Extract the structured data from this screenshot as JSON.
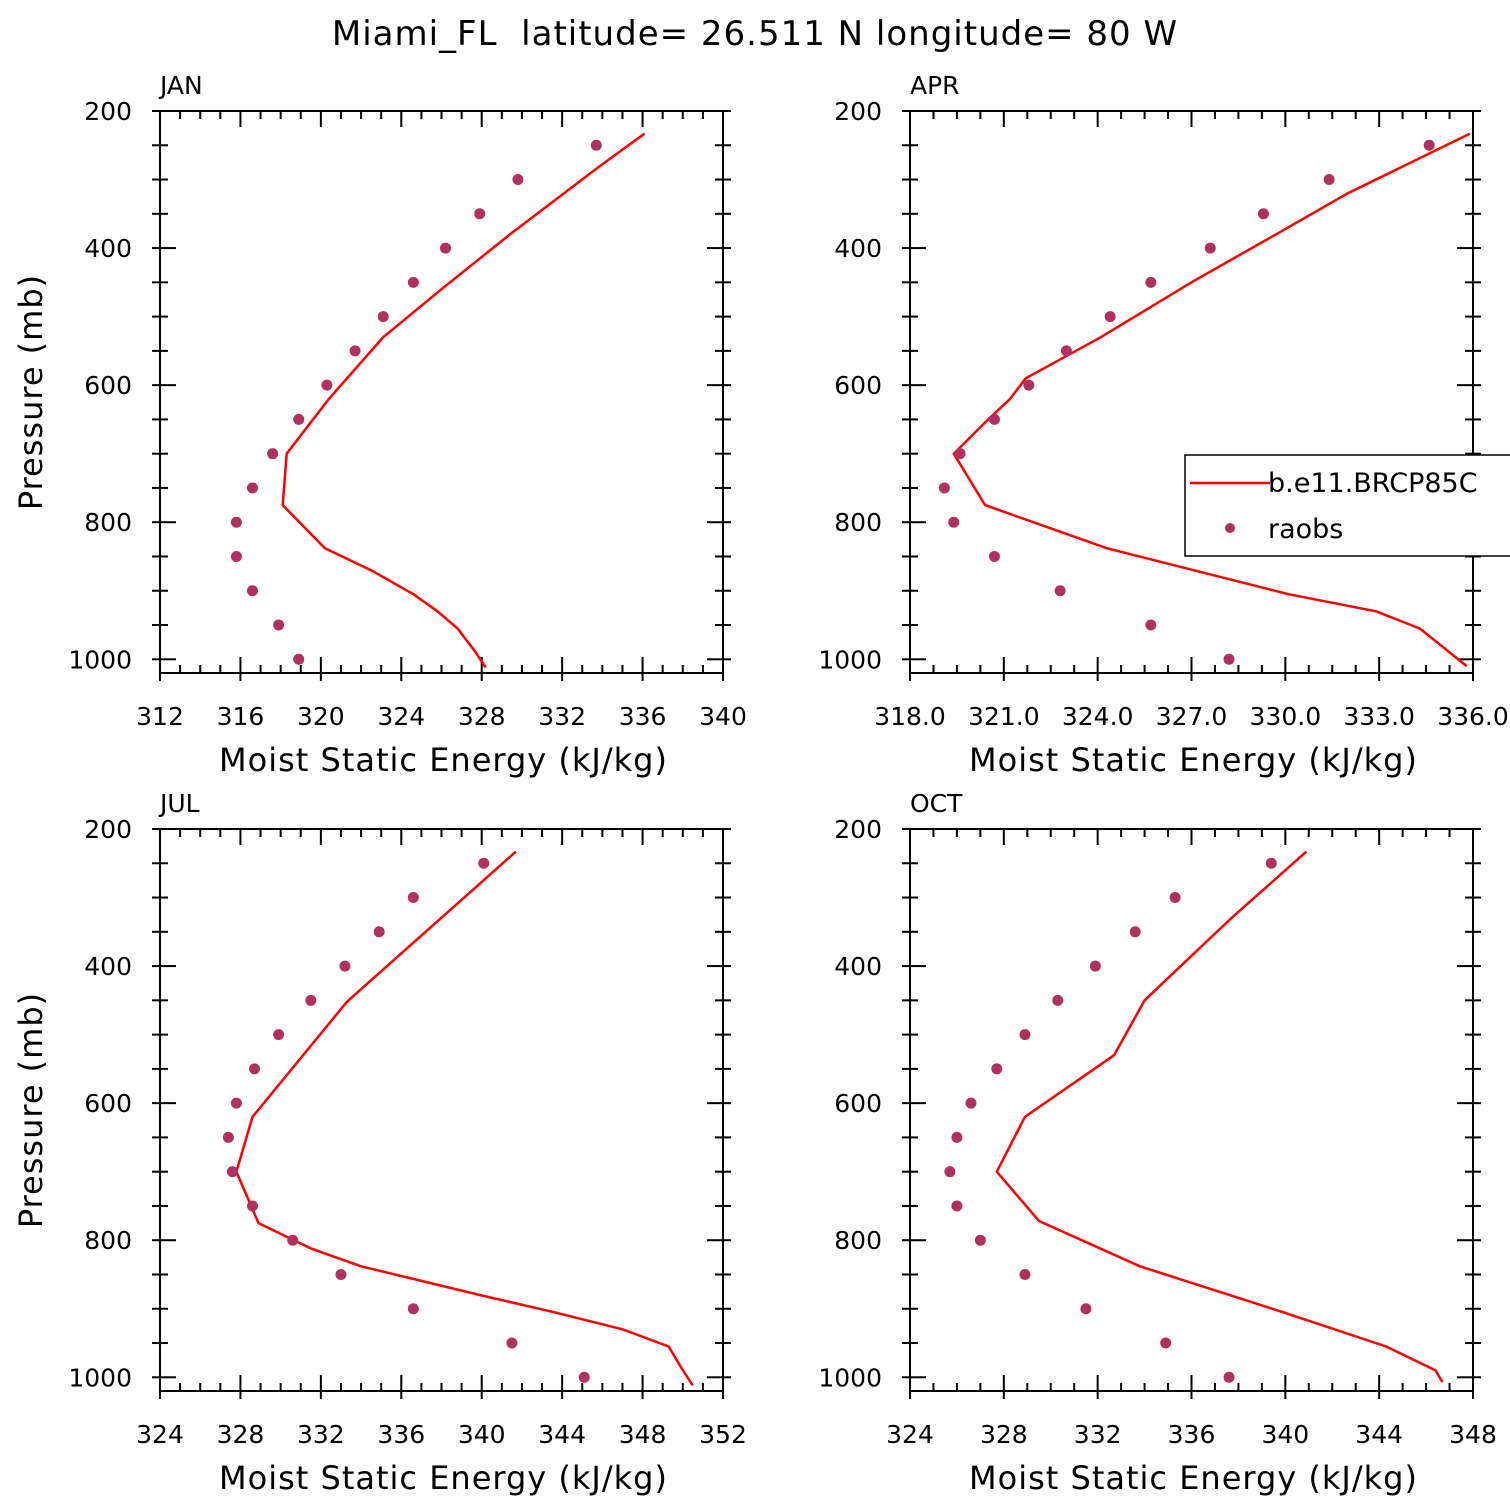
{
  "figure": {
    "title": "Miami_FL  latitude= 26.511 N longitude= 80 W"
  },
  "colors": {
    "model": "#ff0000",
    "raobs": "#b0305f",
    "axes": "#000000"
  },
  "legend": {
    "model_label": "b.e11.BRCP85C",
    "raobs_label": "raobs",
    "placement": "right, APR panel"
  },
  "chart_data": [
    {
      "type": "line",
      "panel_label": "JAN",
      "xlabel": "Moist Static Energy (kJ/kg)",
      "ylabel": "Pressure (mb)",
      "xlim": [
        312,
        340
      ],
      "ylim": [
        1020,
        200
      ],
      "x_ticks": [
        "312",
        "316",
        "320",
        "324",
        "328",
        "332",
        "336",
        "340"
      ],
      "y_ticks": [
        "200",
        "400",
        "600",
        "800",
        "1000"
      ],
      "series": [
        {
          "name": "b.e11.BRCP85C",
          "kind": "line",
          "x": [
            336.1,
            333.9,
            329.4,
            326.0,
            323.1,
            320.4,
            318.3,
            318.1,
            320.2,
            322.5,
            324.6,
            325.8,
            326.8,
            327.7,
            328.2
          ],
          "y": [
            233,
            280,
            380,
            460,
            530,
            620,
            700,
            775,
            838,
            870,
            905,
            930,
            955,
            990,
            1012
          ]
        },
        {
          "name": "raobs",
          "kind": "scatter",
          "x": [
            333.7,
            329.8,
            327.9,
            326.2,
            324.6,
            323.1,
            321.7,
            320.3,
            318.9,
            317.6,
            316.6,
            315.8,
            315.8,
            316.6,
            317.9,
            318.9
          ],
          "y": [
            250,
            300,
            350,
            400,
            450,
            500,
            550,
            600,
            650,
            700,
            750,
            800,
            850,
            900,
            950,
            1000
          ]
        }
      ]
    },
    {
      "type": "line",
      "panel_label": "APR",
      "xlabel": "Moist Static Energy (kJ/kg)",
      "ylabel": "",
      "xlim": [
        318,
        336
      ],
      "ylim": [
        1020,
        200
      ],
      "x_ticks": [
        "318.0",
        "321.0",
        "324.0",
        "327.0",
        "330.0",
        "333.0",
        "336.0"
      ],
      "y_ticks": [
        "200",
        "400",
        "600",
        "800",
        "1000"
      ],
      "series": [
        {
          "name": "b.e11.BRCP85C",
          "kind": "line",
          "x": [
            335.9,
            333.8,
            332.0,
            329.7,
            327.0,
            324.1,
            321.7,
            321.2,
            320.5,
            319.4,
            320.4,
            324.3,
            330.1,
            332.9,
            334.3,
            335.8
          ],
          "y": [
            233,
            280,
            320,
            380,
            450,
            530,
            590,
            620,
            650,
            700,
            775,
            838,
            905,
            930,
            955,
            1010
          ]
        },
        {
          "name": "raobs",
          "kind": "scatter",
          "x": [
            334.6,
            331.4,
            329.3,
            327.6,
            325.7,
            324.4,
            323.0,
            321.8,
            320.7,
            319.6,
            319.1,
            319.4,
            320.7,
            322.8,
            325.7,
            328.2
          ],
          "y": [
            250,
            300,
            350,
            400,
            450,
            500,
            550,
            600,
            650,
            700,
            750,
            800,
            850,
            900,
            950,
            1000
          ]
        }
      ]
    },
    {
      "type": "line",
      "panel_label": "JUL",
      "xlabel": "Moist Static Energy (kJ/kg)",
      "ylabel": "Pressure (mb)",
      "xlim": [
        324,
        352
      ],
      "ylim": [
        1020,
        200
      ],
      "x_ticks": [
        "324",
        "328",
        "332",
        "336",
        "340",
        "344",
        "348",
        "352"
      ],
      "y_ticks": [
        "200",
        "400",
        "600",
        "800",
        "1000"
      ],
      "series": [
        {
          "name": "b.e11.BRCP85C",
          "kind": "line",
          "x": [
            341.7,
            333.3,
            328.6,
            327.8,
            328.9,
            331.5,
            334.0,
            339.9,
            343.6,
            347.0,
            349.3,
            349.9,
            350.5
          ],
          "y": [
            233,
            452,
            620,
            700,
            775,
            812,
            838,
            880,
            905,
            930,
            955,
            985,
            1012
          ]
        },
        {
          "name": "raobs",
          "kind": "scatter",
          "x": [
            340.1,
            336.6,
            334.9,
            333.2,
            331.5,
            329.9,
            328.7,
            327.8,
            327.4,
            327.6,
            328.6,
            330.6,
            333.0,
            336.6,
            341.5,
            345.1
          ],
          "y": [
            250,
            300,
            350,
            400,
            450,
            500,
            550,
            600,
            650,
            700,
            750,
            800,
            850,
            900,
            950,
            1000
          ]
        }
      ]
    },
    {
      "type": "line",
      "panel_label": "OCT",
      "xlabel": "Moist Static Energy (kJ/kg)",
      "ylabel": "",
      "xlim": [
        324,
        348
      ],
      "ylim": [
        1020,
        200
      ],
      "x_ticks": [
        "324",
        "328",
        "332",
        "336",
        "340",
        "344",
        "348"
      ],
      "y_ticks": [
        "200",
        "400",
        "600",
        "800",
        "1000"
      ],
      "series": [
        {
          "name": "b.e11.BRCP85C",
          "kind": "line",
          "x": [
            340.9,
            337.7,
            336.0,
            334.0,
            332.7,
            328.9,
            327.7,
            329.5,
            333.8,
            339.9,
            344.3,
            346.4,
            346.7
          ],
          "y": [
            233,
            330,
            385,
            450,
            530,
            620,
            700,
            772,
            838,
            905,
            955,
            990,
            1007
          ]
        },
        {
          "name": "raobs",
          "kind": "scatter",
          "x": [
            339.4,
            335.3,
            333.6,
            331.9,
            330.3,
            328.9,
            327.7,
            326.6,
            326.0,
            325.7,
            326.0,
            327.0,
            328.9,
            331.5,
            334.9,
            337.6
          ],
          "y": [
            250,
            300,
            350,
            400,
            450,
            500,
            550,
            600,
            650,
            700,
            750,
            800,
            850,
            900,
            950,
            1000
          ]
        }
      ]
    }
  ]
}
